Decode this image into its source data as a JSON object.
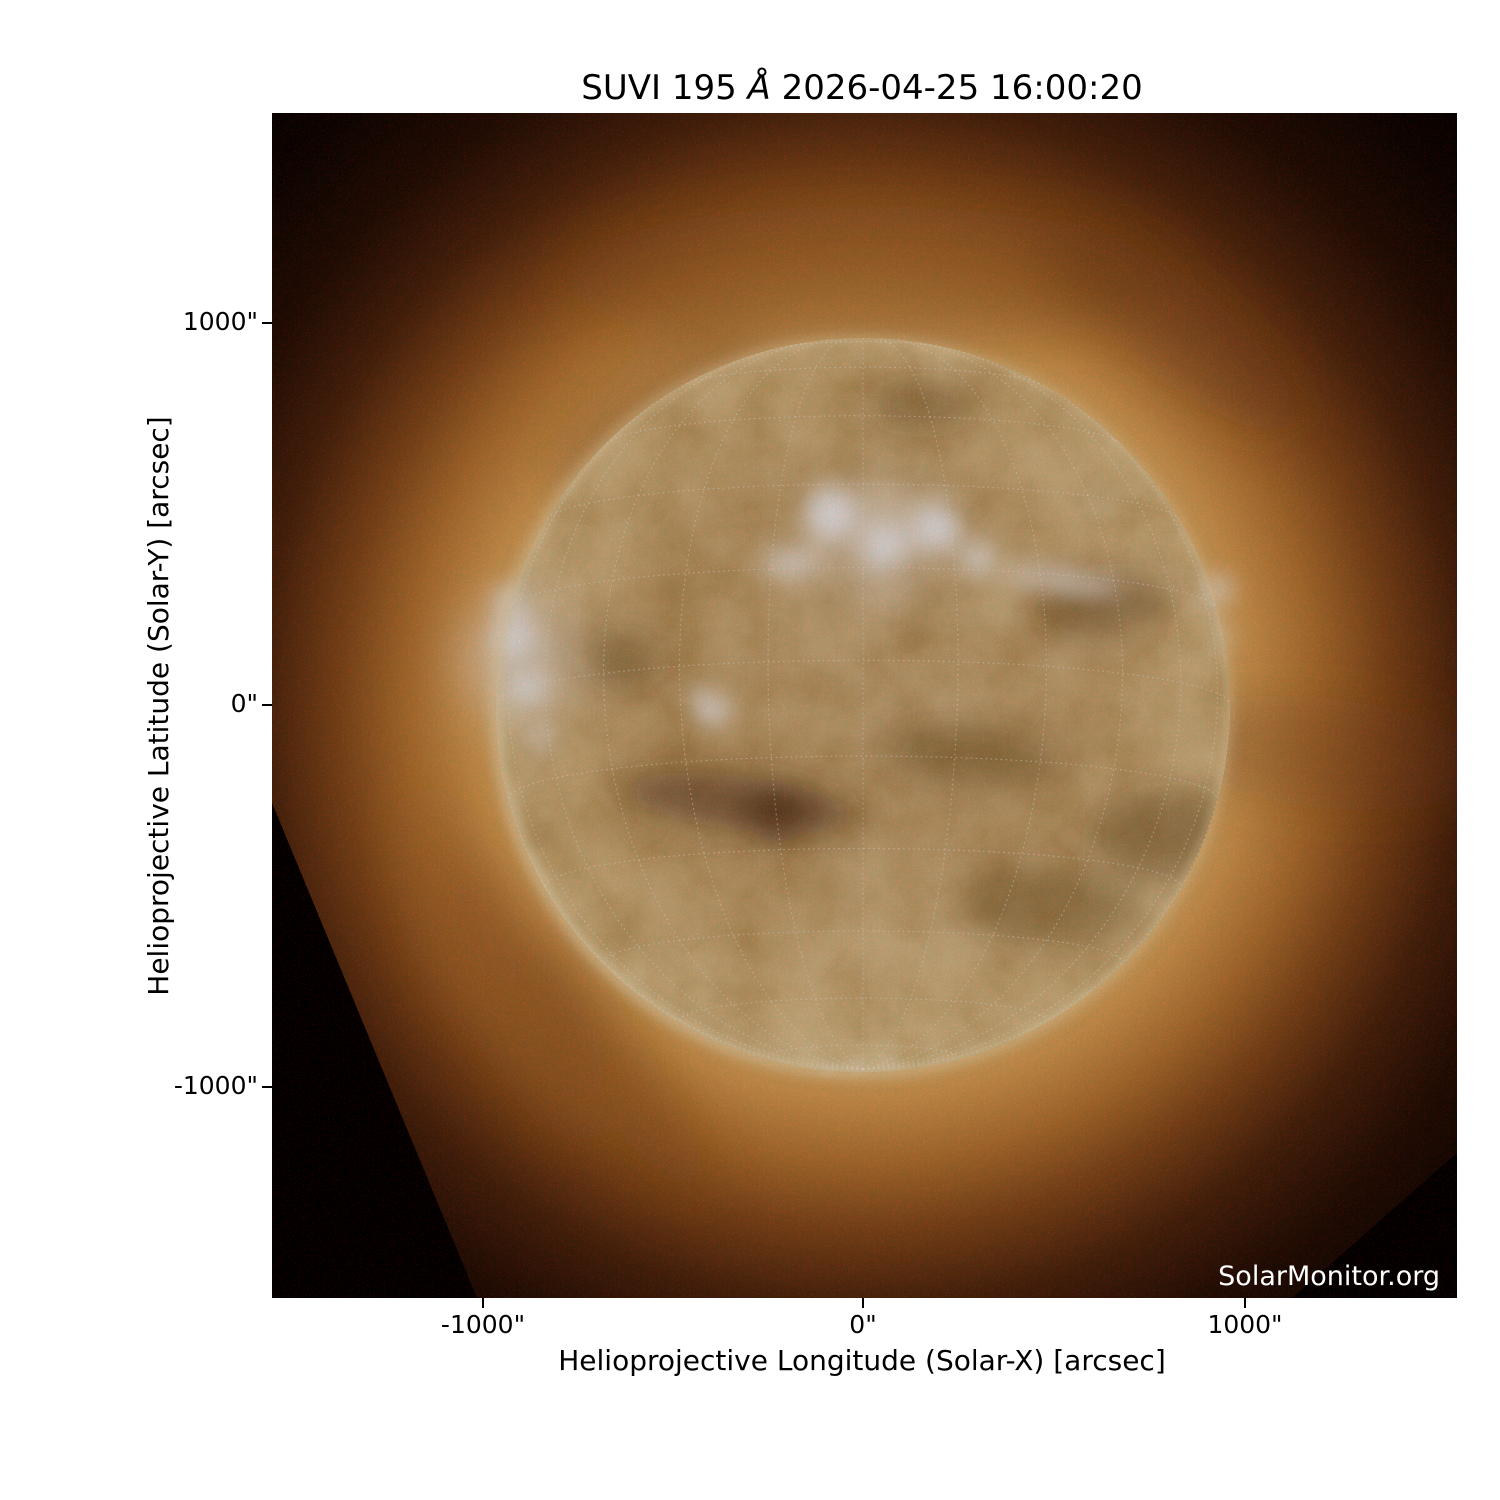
{
  "title": {
    "prefix": "SUVI 195 ",
    "angstrom": "Å",
    "suffix": " 2026-04-25 16:00:20",
    "full": "SUVI 195 Å 2026-04-25 16:00:20"
  },
  "axes": {
    "x": {
      "label": "Helioprojective Longitude (Solar-X) [arcsec]",
      "ticks": [
        {
          "value": -1000,
          "label": "-1000\""
        },
        {
          "value": 0,
          "label": "0\""
        },
        {
          "value": 1000,
          "label": "1000\""
        }
      ]
    },
    "y": {
      "label": "Helioprojective Latitude (Solar-Y) [arcsec]",
      "ticks": [
        {
          "value": 1000,
          "label": "1000\""
        },
        {
          "value": 0,
          "label": "0\""
        },
        {
          "value": -1000,
          "label": "-1000\""
        }
      ]
    }
  },
  "watermark": "SolarMonitor.org",
  "colors": {
    "page_background": "#ffffff",
    "plot_background": "#000000",
    "text": "#000000",
    "watermark_text": "#ffffff",
    "disk_core": "#c4914f",
    "disk_limb": "#f4d694",
    "corona_glow": "#e3a756",
    "corona_dark": "#46220c",
    "grid_overlay": "#fff8ee"
  },
  "chart_data": {
    "type": "heatmap",
    "title": "SUVI 195 Å 2026-04-25 16:00:20",
    "xlabel": "Helioprojective Longitude (Solar-X) [arcsec]",
    "ylabel": "Helioprojective Latitude (Solar-Y) [arcsec]",
    "xlim": [
      -1555,
      1560
    ],
    "ylim": [
      -1550,
      1545
    ],
    "x_tick_values": [
      -1000,
      0,
      1000
    ],
    "y_tick_values": [
      -1000,
      0,
      1000
    ],
    "grid": "dotted heliographic graticule overlaid on solar disk",
    "legend_position": "none",
    "content_description": "Full-disk extreme-ultraviolet solar image from GOES SUVI at 195 Å; gold/sepia colormap; bright active-region complex north of disk center, bright flaring region on the east (left) limb, dark filament channels below and right of disk center, dark corner cut-offs from image rotation at lower-left and lower-right",
    "solar_disk": {
      "center_arcsec": [
        0,
        0
      ],
      "radius_arcsec": 960
    }
  }
}
